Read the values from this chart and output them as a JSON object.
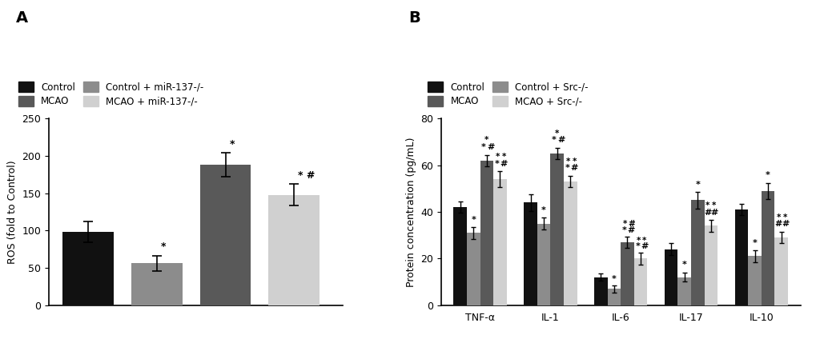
{
  "panel_A": {
    "ylabel": "ROS (fold to Control)",
    "ylim": [
      0,
      250
    ],
    "yticks": [
      0,
      50,
      100,
      150,
      200,
      250
    ],
    "bar_values": [
      98,
      56,
      188,
      148
    ],
    "bar_errors": [
      14,
      10,
      16,
      14
    ],
    "bar_colors": [
      "#111111",
      "#8c8c8c",
      "#595959",
      "#d0d0d0"
    ],
    "bar_labels": [
      "Control",
      "Control + miR-137-/-",
      "MCAO",
      "MCAO + miR-137-/-"
    ]
  },
  "panel_B": {
    "ylabel": "Protein concentration (pg/mL)",
    "ylim": [
      0,
      80
    ],
    "yticks": [
      0,
      20,
      40,
      60,
      80
    ],
    "categories": [
      "TNF-α",
      "IL-1",
      "IL-6",
      "IL-17",
      "IL-10"
    ],
    "bar_colors": [
      "#111111",
      "#8c8c8c",
      "#595959",
      "#d0d0d0"
    ],
    "bar_labels": [
      "Control",
      "Control + Src-/-",
      "MCAO",
      "MCAO + Src-/-"
    ],
    "values": {
      "TNF-α": [
        42,
        31,
        62,
        54
      ],
      "IL-1": [
        44,
        35,
        65,
        53
      ],
      "IL-6": [
        12,
        7,
        27,
        20
      ],
      "IL-17": [
        24,
        12,
        45,
        34
      ],
      "IL-10": [
        41,
        21,
        49,
        29
      ]
    },
    "errors": {
      "TNF-α": [
        2.5,
        2.5,
        2.5,
        3.5
      ],
      "IL-1": [
        3.5,
        2.5,
        2.5,
        2.5
      ],
      "IL-6": [
        1.5,
        1.5,
        2.5,
        2.5
      ],
      "IL-17": [
        2.5,
        2.0,
        3.5,
        2.5
      ],
      "IL-10": [
        2.5,
        2.5,
        3.5,
        2.5
      ]
    }
  },
  "background_color": "#ffffff"
}
